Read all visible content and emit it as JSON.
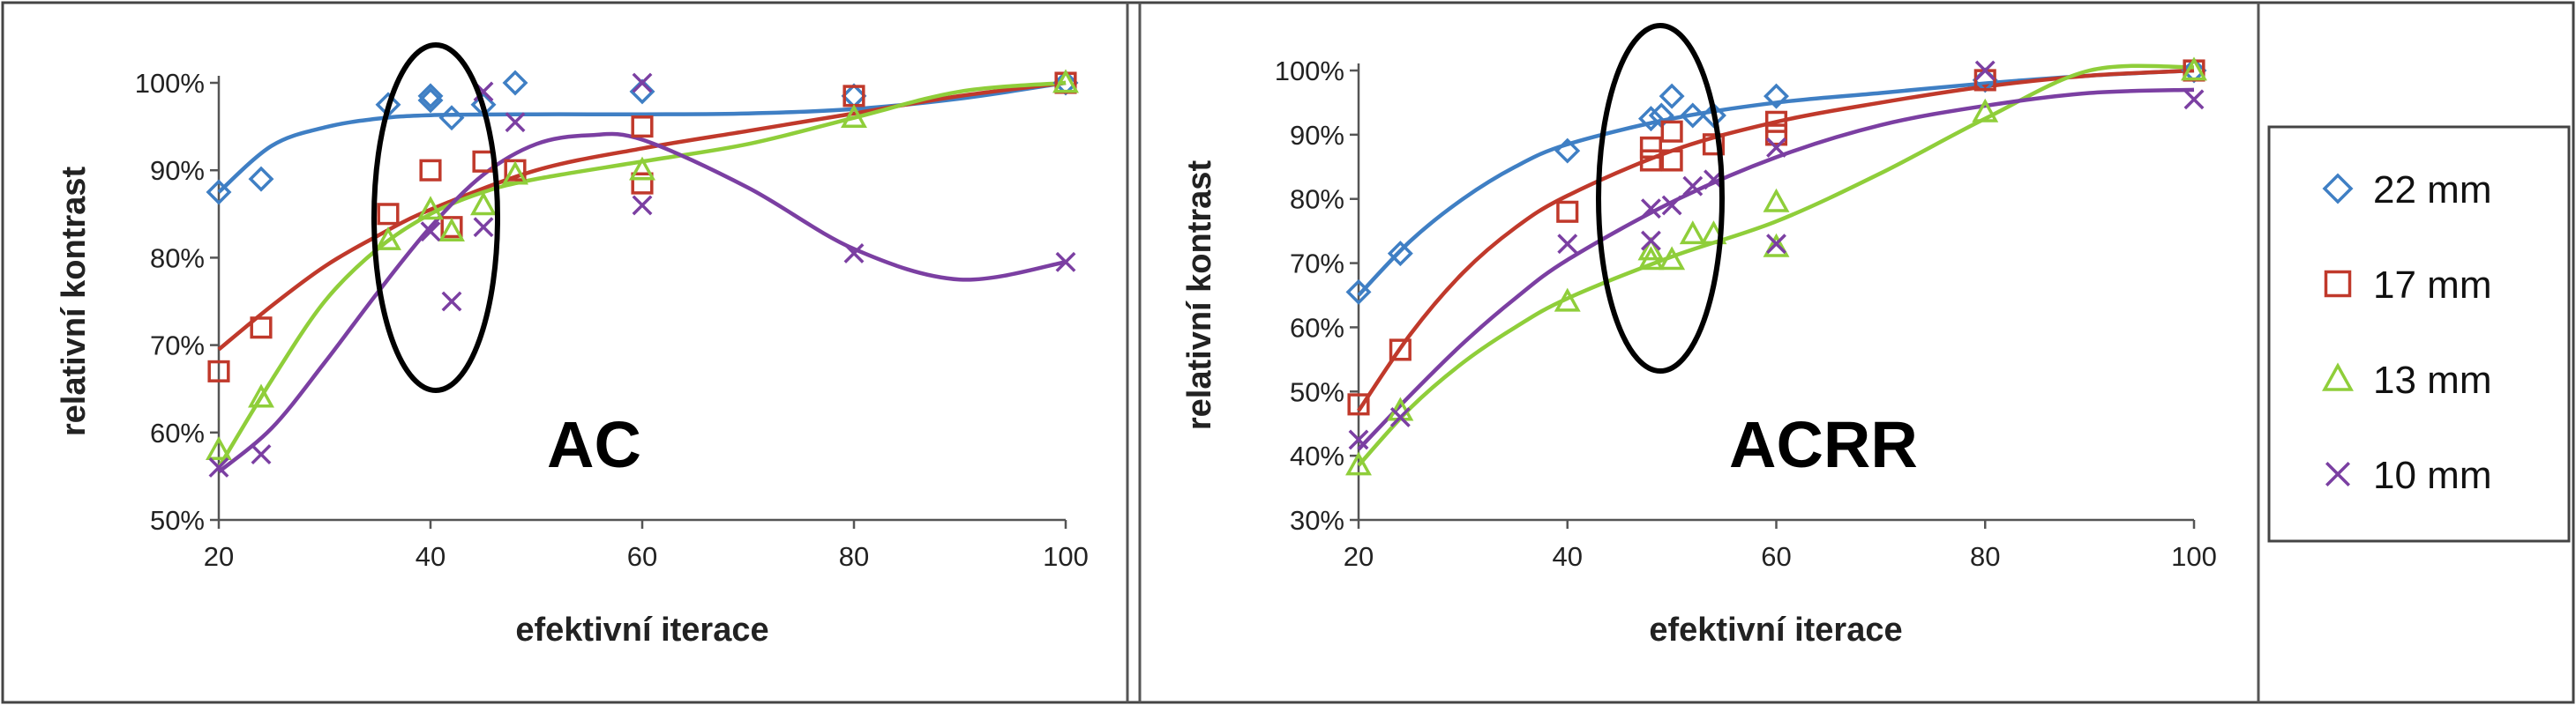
{
  "figure": {
    "colors": {
      "22 mm": "#3f7fc4",
      "17 mm": "#c0392b",
      "13 mm": "#8fce3a",
      "10 mm": "#7b3fa2"
    },
    "markers": {
      "22 mm": "diamond",
      "17 mm": "square",
      "13 mm": "triangle",
      "10 mm": "x"
    }
  },
  "legend": {
    "position": "right",
    "items": [
      "22 mm",
      "17 mm",
      "13 mm",
      "10 mm"
    ]
  },
  "chart_data": [
    {
      "type": "scatter",
      "title": "AC",
      "xlabel": "efektivní iterace",
      "ylabel": "relativní kontrast",
      "xlim": [
        20,
        100
      ],
      "ylim": [
        50,
        100
      ],
      "xticks": [
        20,
        40,
        60,
        80,
        100
      ],
      "yticks": [
        50,
        60,
        70,
        80,
        90,
        100
      ],
      "ytick_labels": [
        "50%",
        "60%",
        "70%",
        "80%",
        "90%",
        "100%"
      ],
      "grid": false,
      "trendline": "polynomial",
      "series": [
        {
          "name": "22 mm",
          "points": [
            [
              20,
              87.5
            ],
            [
              24,
              89
            ],
            [
              36,
              97.5
            ],
            [
              40,
              98.5
            ],
            [
              40,
              98
            ],
            [
              42,
              96
            ],
            [
              45,
              97.5
            ],
            [
              48,
              100
            ],
            [
              60,
              99
            ],
            [
              80,
              98.5
            ],
            [
              100,
              100
            ]
          ],
          "trend": [
            [
              20,
              87.5
            ],
            [
              25,
              92.8
            ],
            [
              30,
              94.9
            ],
            [
              35,
              95.9
            ],
            [
              40,
              96.3
            ],
            [
              50,
              96.4
            ],
            [
              60,
              96.4
            ],
            [
              70,
              96.5
            ],
            [
              80,
              97
            ],
            [
              90,
              98.2
            ],
            [
              100,
              100
            ]
          ]
        },
        {
          "name": "17 mm",
          "points": [
            [
              20,
              67
            ],
            [
              24,
              72
            ],
            [
              36,
              85
            ],
            [
              40,
              90
            ],
            [
              42,
              83.5
            ],
            [
              45,
              91
            ],
            [
              48,
              90
            ],
            [
              60,
              95
            ],
            [
              60,
              88.5
            ],
            [
              80,
              98.5
            ],
            [
              100,
              100
            ]
          ],
          "trend": [
            [
              20,
              69.5
            ],
            [
              25,
              74.5
            ],
            [
              30,
              79
            ],
            [
              35,
              82.5
            ],
            [
              40,
              85.5
            ],
            [
              50,
              90
            ],
            [
              60,
              92.5
            ],
            [
              70,
              94.5
            ],
            [
              80,
              96.5
            ],
            [
              90,
              98.5
            ],
            [
              100,
              100
            ]
          ]
        },
        {
          "name": "13 mm",
          "points": [
            [
              20,
              58
            ],
            [
              24,
              64
            ],
            [
              36,
              82
            ],
            [
              40,
              85.5
            ],
            [
              42,
              83
            ],
            [
              45,
              86
            ],
            [
              48,
              89.5
            ],
            [
              60,
              90
            ],
            [
              80,
              96
            ],
            [
              100,
              100
            ]
          ],
          "trend": [
            [
              20,
              56
            ],
            [
              25,
              66
            ],
            [
              30,
              75
            ],
            [
              35,
              81
            ],
            [
              40,
              85
            ],
            [
              45,
              87.5
            ],
            [
              50,
              89
            ],
            [
              60,
              91
            ],
            [
              70,
              93
            ],
            [
              80,
              96
            ],
            [
              90,
              99
            ],
            [
              100,
              100
            ]
          ]
        },
        {
          "name": "10 mm",
          "points": [
            [
              20,
              56
            ],
            [
              24,
              57.5
            ],
            [
              40,
              83
            ],
            [
              42,
              75
            ],
            [
              45,
              83.5
            ],
            [
              45,
              99
            ],
            [
              48,
              95.5
            ],
            [
              60,
              100
            ],
            [
              60,
              86
            ],
            [
              80,
              80.5
            ],
            [
              100,
              79.5
            ]
          ],
          "trend": [
            [
              20,
              55.5
            ],
            [
              25,
              60.5
            ],
            [
              30,
              68
            ],
            [
              35,
              76
            ],
            [
              40,
              83.5
            ],
            [
              45,
              89.5
            ],
            [
              50,
              93
            ],
            [
              55,
              94
            ],
            [
              60,
              93.5
            ],
            [
              70,
              88
            ],
            [
              80,
              81
            ],
            [
              90,
              77.5
            ],
            [
              100,
              79.5
            ]
          ]
        }
      ]
    },
    {
      "type": "scatter",
      "title": "ACRR",
      "xlabel": "efektivní iterace",
      "ylabel": "relativní kontrast",
      "xlim": [
        20,
        100
      ],
      "ylim": [
        30,
        100
      ],
      "xticks": [
        20,
        40,
        60,
        80,
        100
      ],
      "yticks": [
        30,
        40,
        50,
        60,
        70,
        80,
        90,
        100
      ],
      "ytick_labels": [
        "30%",
        "40%",
        "50%",
        "60%",
        "70%",
        "80%",
        "90%",
        "100%"
      ],
      "grid": false,
      "trendline": "polynomial",
      "series": [
        {
          "name": "22 mm",
          "points": [
            [
              20,
              65.5
            ],
            [
              24,
              71.5
            ],
            [
              40,
              87.5
            ],
            [
              48,
              92.5
            ],
            [
              49,
              93
            ],
            [
              50,
              96
            ],
            [
              52,
              93
            ],
            [
              54,
              93
            ],
            [
              60,
              96
            ],
            [
              80,
              98.5
            ],
            [
              100,
              100
            ]
          ],
          "trend": [
            [
              20,
              65
            ],
            [
              25,
              73.5
            ],
            [
              30,
              80
            ],
            [
              35,
              85
            ],
            [
              40,
              88.5
            ],
            [
              50,
              92.5
            ],
            [
              60,
              95
            ],
            [
              70,
              96.5
            ],
            [
              80,
              98
            ],
            [
              90,
              99.2
            ],
            [
              100,
              100
            ]
          ]
        },
        {
          "name": "17 mm",
          "points": [
            [
              20,
              48
            ],
            [
              24,
              56.5
            ],
            [
              40,
              78
            ],
            [
              48,
              86
            ],
            [
              48,
              88
            ],
            [
              50,
              86
            ],
            [
              50,
              90.5
            ],
            [
              54,
              88.5
            ],
            [
              60,
              92
            ],
            [
              60,
              90
            ],
            [
              80,
              98.5
            ],
            [
              100,
              100
            ]
          ],
          "trend": [
            [
              20,
              47
            ],
            [
              25,
              59
            ],
            [
              30,
              68.5
            ],
            [
              35,
              75.5
            ],
            [
              40,
              80.5
            ],
            [
              50,
              87.5
            ],
            [
              60,
              92
            ],
            [
              70,
              95
            ],
            [
              80,
              97.5
            ],
            [
              90,
              99.2
            ],
            [
              100,
              100
            ]
          ]
        },
        {
          "name": "13 mm",
          "points": [
            [
              20,
              38.5
            ],
            [
              24,
              47
            ],
            [
              40,
              64
            ],
            [
              48,
              70.5
            ],
            [
              48,
              72
            ],
            [
              50,
              70.5
            ],
            [
              52,
              74.5
            ],
            [
              54,
              74.5
            ],
            [
              60,
              79.5
            ],
            [
              60,
              72.5
            ],
            [
              80,
              93.5
            ],
            [
              100,
              100
            ]
          ],
          "trend": [
            [
              20,
              38.5
            ],
            [
              25,
              47.5
            ],
            [
              30,
              54.5
            ],
            [
              35,
              60
            ],
            [
              40,
              64.5
            ],
            [
              50,
              71
            ],
            [
              60,
              76.5
            ],
            [
              70,
              84
            ],
            [
              80,
              92.5
            ],
            [
              90,
              100
            ],
            [
              100,
              100.5
            ]
          ]
        },
        {
          "name": "10 mm",
          "points": [
            [
              20,
              42.5
            ],
            [
              24,
              46
            ],
            [
              40,
              73
            ],
            [
              48,
              73.5
            ],
            [
              48,
              78.5
            ],
            [
              50,
              79
            ],
            [
              52,
              82
            ],
            [
              54,
              83
            ],
            [
              60,
              88
            ],
            [
              60,
              73
            ],
            [
              80,
              100
            ],
            [
              100,
              95.5
            ]
          ],
          "trend": [
            [
              20,
              41
            ],
            [
              25,
              49.5
            ],
            [
              30,
              57.5
            ],
            [
              35,
              64.5
            ],
            [
              40,
              70.5
            ],
            [
              50,
              79.5
            ],
            [
              60,
              86.5
            ],
            [
              70,
              91.5
            ],
            [
              80,
              94.5
            ],
            [
              90,
              96.5
            ],
            [
              100,
              97
            ]
          ]
        }
      ]
    }
  ]
}
